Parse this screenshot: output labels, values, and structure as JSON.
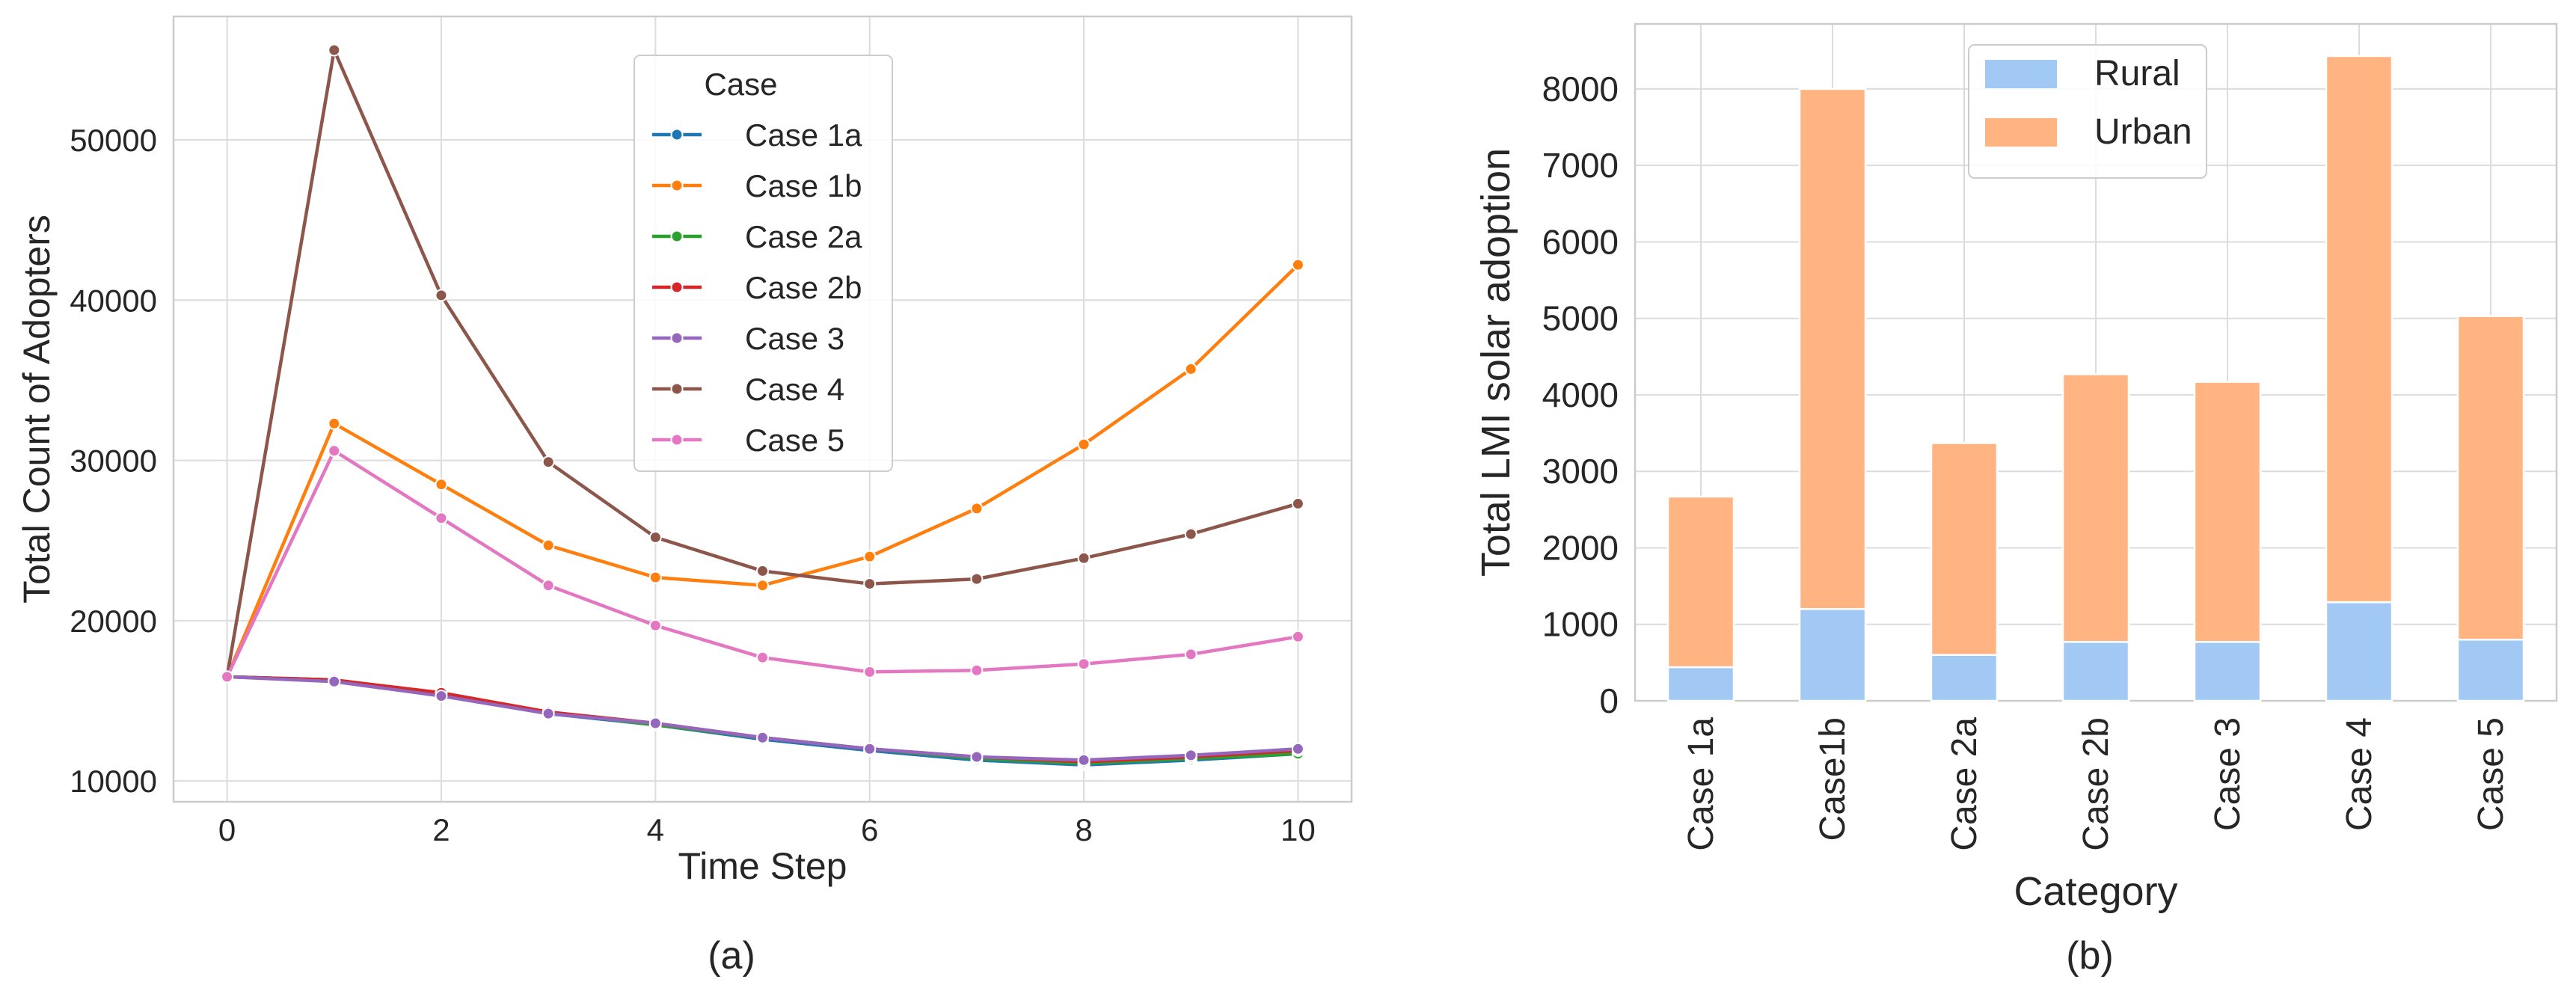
{
  "chart_data": [
    {
      "type": "line",
      "panel_label": "(a)",
      "xlabel": "Time Step",
      "ylabel": "Total Count of Adopters",
      "xlim": [
        -0.5,
        10.5
      ],
      "ylim": [
        8700,
        57700
      ],
      "xticks": [
        0,
        2,
        4,
        6,
        8,
        10
      ],
      "yticks": [
        10000,
        20000,
        30000,
        40000,
        50000
      ],
      "grid": true,
      "legend": {
        "title": "Case",
        "placement": "top-center"
      },
      "x": [
        0,
        1,
        2,
        3,
        4,
        5,
        6,
        7,
        8,
        9,
        10
      ],
      "series": [
        {
          "name": "Case 1a",
          "color": "#1f77b4",
          "values": [
            16500,
            16300,
            15400,
            14200,
            13500,
            12600,
            11900,
            11300,
            11000,
            11300,
            11700
          ]
        },
        {
          "name": "Case 1b",
          "color": "#ff7f0e",
          "values": [
            16500,
            32300,
            28500,
            24700,
            22700,
            22200,
            24000,
            27000,
            31000,
            35700,
            42200
          ]
        },
        {
          "name": "Case 2a",
          "color": "#2ca02c",
          "values": [
            16500,
            16300,
            15400,
            14300,
            13500,
            12700,
            12000,
            11400,
            11100,
            11400,
            11700
          ]
        },
        {
          "name": "Case 2b",
          "color": "#d62728",
          "values": [
            16500,
            16300,
            15500,
            14300,
            13600,
            12700,
            12000,
            11500,
            11200,
            11500,
            11900
          ]
        },
        {
          "name": "Case 3",
          "color": "#9467bd",
          "values": [
            16500,
            16200,
            15300,
            14200,
            13600,
            12700,
            12000,
            11500,
            11300,
            11600,
            12000
          ]
        },
        {
          "name": "Case 4",
          "color": "#8c564b",
          "values": [
            16500,
            55600,
            40300,
            29900,
            25200,
            23100,
            22300,
            22600,
            23900,
            25400,
            27300
          ]
        },
        {
          "name": "Case 5",
          "color": "#e377c2",
          "values": [
            16500,
            30600,
            26400,
            22200,
            19700,
            17700,
            16800,
            16900,
            17300,
            17900,
            19000
          ]
        }
      ]
    },
    {
      "type": "bar",
      "stacked": true,
      "panel_label": "(b)",
      "xlabel": "Category",
      "ylabel": "Total LMI solar adoption",
      "ylim": [
        0,
        8850
      ],
      "yticks": [
        0,
        1000,
        2000,
        3000,
        4000,
        5000,
        6000,
        7000,
        8000
      ],
      "grid": true,
      "legend": {
        "placement": "top-center"
      },
      "categories": [
        "Case 1a",
        "Case1b",
        "Case 2a",
        "Case 2b",
        "Case 3",
        "Case 4",
        "Case 5"
      ],
      "series": [
        {
          "name": "Rural",
          "color": "#a1c9f4",
          "values": [
            440,
            1200,
            600,
            770,
            770,
            1290,
            800
          ]
        },
        {
          "name": "Urban",
          "color": "#ffb482",
          "values": [
            2230,
            6800,
            2770,
            3500,
            3400,
            7140,
            4230
          ]
        }
      ]
    }
  ]
}
